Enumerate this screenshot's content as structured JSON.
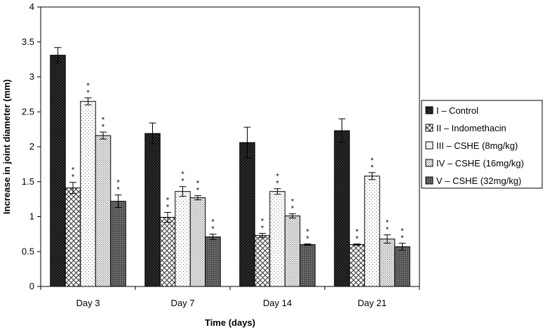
{
  "chart_data": {
    "type": "bar",
    "title": "",
    "xlabel": "Time (days)",
    "ylabel": "Increase in joint diameter (mm)",
    "categories": [
      "Day 3",
      "Day 7",
      "Day 14",
      "Day 21"
    ],
    "ylim": [
      0,
      4
    ],
    "yticks": [
      "0",
      "0.5",
      "1",
      "1.5",
      "2",
      "2.5",
      "3",
      "3.5",
      "4"
    ],
    "grid": false,
    "legend_position": "right",
    "significance_marker": "**",
    "series": [
      {
        "name": "I – Control",
        "pattern": "solid-dark",
        "values": [
          3.31,
          2.19,
          2.06,
          2.23
        ],
        "errors": [
          0.11,
          0.15,
          0.22,
          0.17
        ],
        "significant": [
          false,
          false,
          false,
          false
        ]
      },
      {
        "name": "II – Indomethacin",
        "pattern": "crosshatch",
        "values": [
          1.41,
          0.99,
          0.73,
          0.6
        ],
        "errors": [
          0.08,
          0.07,
          0.03,
          0.01
        ],
        "significant": [
          true,
          true,
          true,
          true
        ]
      },
      {
        "name": "III – CSHE (8mg/kg)",
        "pattern": "light-dots",
        "values": [
          2.65,
          1.36,
          1.36,
          1.58
        ],
        "errors": [
          0.05,
          0.07,
          0.04,
          0.05
        ],
        "significant": [
          true,
          true,
          true,
          true
        ]
      },
      {
        "name": "IV – CSHE (16mg/kg)",
        "pattern": "fine-dots",
        "values": [
          2.16,
          1.27,
          1.01,
          0.68
        ],
        "errors": [
          0.05,
          0.03,
          0.03,
          0.06
        ],
        "significant": [
          true,
          true,
          true,
          true
        ]
      },
      {
        "name": "V – CSHE (32mg/kg)",
        "pattern": "dark-dots",
        "values": [
          1.22,
          0.71,
          0.6,
          0.57
        ],
        "errors": [
          0.09,
          0.04,
          0.01,
          0.05
        ],
        "significant": [
          true,
          true,
          true,
          true
        ]
      }
    ]
  }
}
